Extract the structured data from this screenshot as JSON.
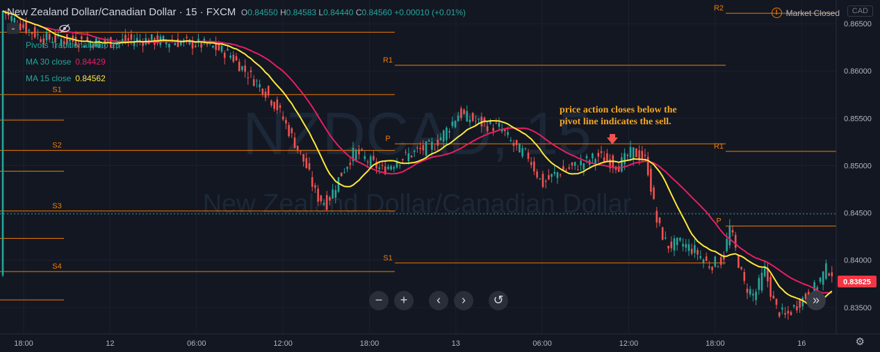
{
  "header": {
    "title": "New Zealand Dollar/Canadian Dollar · 15 · FXCM",
    "open_label": "O",
    "open": "0.84550",
    "high_label": "H",
    "high": "0.84583",
    "low_label": "L",
    "low": "0.84440",
    "close_label": "C",
    "close": "0.84560",
    "change": "+0.00010 (+0.01%)"
  },
  "status": {
    "market": "Market Closed",
    "currency": "CAD"
  },
  "legend": {
    "pivots": "Pivots Traditional Auto 15",
    "ma30_label": "MA 30 close",
    "ma30_value": "0.84429",
    "ma15_label": "MA 15 close",
    "ma15_value": "0.84562"
  },
  "annotation": {
    "line1": "price action closes below the",
    "line2": "pivot line indicates the sell."
  },
  "watermark": {
    "symbol": "NZDCAD, 15",
    "name": "New Zealand Dollar/Canadian Dollar"
  },
  "controls": {
    "zoom_out_icon": "minus-icon",
    "zoom_in_icon": "plus-icon",
    "scroll_left_icon": "chevron-left-icon",
    "scroll_right_icon": "chevron-right-icon",
    "reset_icon": "reset-icon",
    "go_realtime_icon": "double-chevron-right-icon",
    "settings_icon": "gear-icon",
    "hide_icon": "eye-off-icon"
  },
  "chart_data": {
    "type": "candlestick",
    "x_ticks": [
      "18:00",
      "12",
      "06:00",
      "12:00",
      "18:00",
      "13",
      "06:00",
      "12:00",
      "18:00",
      "16"
    ],
    "y_ticks": [
      "0.86500",
      "0.86000",
      "0.85500",
      "0.85000",
      "0.84500",
      "0.84000",
      "0.83500"
    ],
    "ylim": [
      0.8322,
      0.8675
    ],
    "last_price": "0.83825",
    "colors": {
      "up": "#26a69a",
      "down": "#ef5350",
      "ma15": "#ffeb3b",
      "ma30": "#e91e63",
      "pivot": "#f57c00",
      "price_label": "#f23645"
    },
    "pivots": [
      {
        "period": 1,
        "levels": [
          {
            "name": "",
            "value": 0.8641
          },
          {
            "name": "S1",
            "value": 0.8575
          },
          {
            "name": "",
            "value": 0.8548
          },
          {
            "name": "S2",
            "value": 0.8516
          },
          {
            "name": "",
            "value": 0.8494
          },
          {
            "name": "S3",
            "value": 0.8452
          },
          {
            "name": "",
            "value": 0.8423
          },
          {
            "name": "S4",
            "value": 0.8388
          },
          {
            "name": "",
            "value": 0.8358
          }
        ]
      },
      {
        "period": 2,
        "levels": [
          {
            "name": "R1",
            "value": 0.8606
          },
          {
            "name": "P",
            "value": 0.8523
          },
          {
            "name": "S1",
            "value": 0.8397
          }
        ]
      },
      {
        "period": 3,
        "levels": [
          {
            "name": "R2",
            "value": 0.8661
          },
          {
            "name": "R1",
            "value": 0.8515
          },
          {
            "name": "P",
            "value": 0.8436
          }
        ]
      }
    ],
    "path": [
      [
        0,
        0.8666
      ],
      [
        30,
        0.8648
      ],
      [
        60,
        0.8635
      ],
      [
        100,
        0.8632
      ],
      [
        150,
        0.863
      ],
      [
        200,
        0.8633
      ],
      [
        250,
        0.8631
      ],
      [
        300,
        0.8627
      ],
      [
        330,
        0.8618
      ],
      [
        350,
        0.8602
      ],
      [
        380,
        0.858
      ],
      [
        400,
        0.856
      ],
      [
        420,
        0.853
      ],
      [
        440,
        0.85
      ],
      [
        455,
        0.8468
      ],
      [
        470,
        0.846
      ],
      [
        490,
        0.849
      ],
      [
        510,
        0.8515
      ],
      [
        530,
        0.8505
      ],
      [
        550,
        0.8495
      ],
      [
        570,
        0.8505
      ],
      [
        600,
        0.8515
      ],
      [
        625,
        0.8522
      ],
      [
        645,
        0.854
      ],
      [
        660,
        0.8555
      ],
      [
        690,
        0.8545
      ],
      [
        720,
        0.854
      ],
      [
        740,
        0.852
      ],
      [
        760,
        0.851
      ],
      [
        780,
        0.848
      ],
      [
        800,
        0.8492
      ],
      [
        830,
        0.85
      ],
      [
        860,
        0.851
      ],
      [
        890,
        0.85
      ],
      [
        910,
        0.8515
      ],
      [
        930,
        0.8505
      ],
      [
        945,
        0.844
      ],
      [
        960,
        0.8415
      ],
      [
        980,
        0.8418
      ],
      [
        1000,
        0.841
      ],
      [
        1020,
        0.8395
      ],
      [
        1040,
        0.84
      ],
      [
        1050,
        0.8435
      ],
      [
        1070,
        0.8375
      ],
      [
        1085,
        0.8362
      ],
      [
        1100,
        0.839
      ],
      [
        1115,
        0.835
      ],
      [
        1130,
        0.834
      ],
      [
        1150,
        0.8356
      ],
      [
        1170,
        0.8368
      ],
      [
        1190,
        0.8392
      ],
      [
        1203,
        0.8383
      ]
    ]
  }
}
